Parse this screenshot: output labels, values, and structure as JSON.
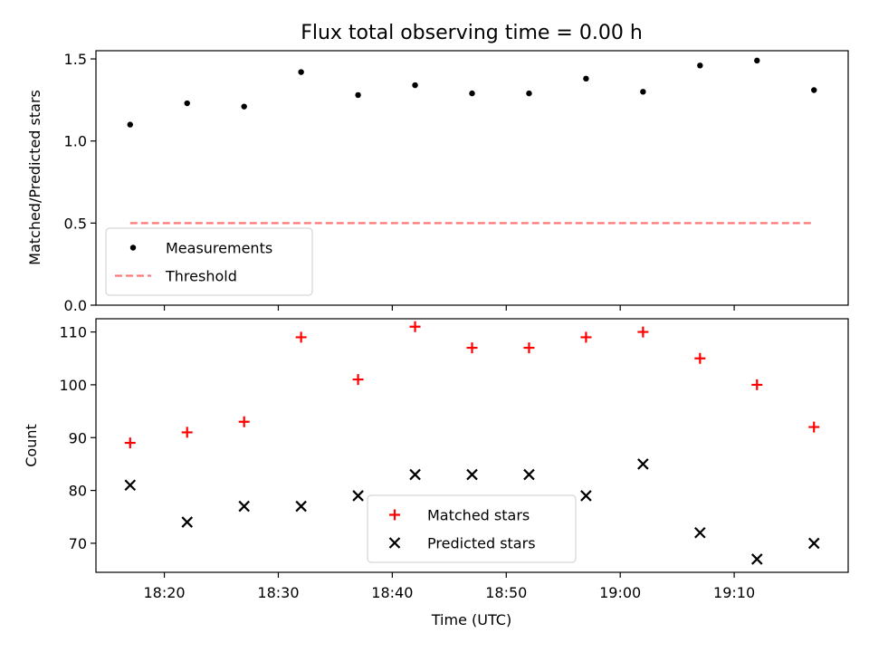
{
  "chart_data": {
    "title": "Flux total observing time = 0.00 h",
    "xlabel": "Time (UTC)",
    "x_tick_labels": [
      "18:20",
      "18:30",
      "18:40",
      "18:50",
      "19:00",
      "19:10"
    ],
    "x": [
      "18:17",
      "18:22",
      "18:27",
      "18:32",
      "18:37",
      "18:42",
      "18:47",
      "18:52",
      "18:57",
      "19:02",
      "19:07",
      "19:12",
      "19:17"
    ],
    "panels": [
      {
        "type": "scatter",
        "ylabel": "Matched/Predicted stars",
        "ylim": [
          0,
          1.55
        ],
        "yticks": [
          "0.0",
          "0.5",
          "1.0",
          "1.5"
        ],
        "legend_position": "lower-left",
        "series": [
          {
            "name": "Measurements",
            "marker": "dot",
            "color": "#000000",
            "values": [
              1.1,
              1.23,
              1.21,
              1.42,
              1.28,
              1.34,
              1.29,
              1.29,
              1.38,
              1.3,
              1.46,
              1.49,
              1.31
            ]
          },
          {
            "name": "Threshold",
            "marker": "dashed-line",
            "color": "#ff7777",
            "values": [
              0.5,
              0.5,
              0.5,
              0.5,
              0.5,
              0.5,
              0.5,
              0.5,
              0.5,
              0.5,
              0.5,
              0.5,
              0.5
            ]
          }
        ]
      },
      {
        "type": "scatter",
        "ylabel": "Count",
        "ylim": [
          64.5,
          112.5
        ],
        "yticks": [
          "70",
          "80",
          "90",
          "100",
          "110"
        ],
        "legend_position": "lower-center",
        "series": [
          {
            "name": "Matched stars",
            "marker": "plus",
            "color": "#ff0000",
            "values": [
              89,
              91,
              93,
              109,
              101,
              111,
              107,
              107,
              109,
              110,
              105,
              100,
              92
            ]
          },
          {
            "name": "Predicted stars",
            "marker": "x",
            "color": "#000000",
            "values": [
              81,
              74,
              77,
              77,
              79,
              83,
              83,
              83,
              79,
              85,
              72,
              67,
              70
            ]
          }
        ]
      }
    ]
  }
}
